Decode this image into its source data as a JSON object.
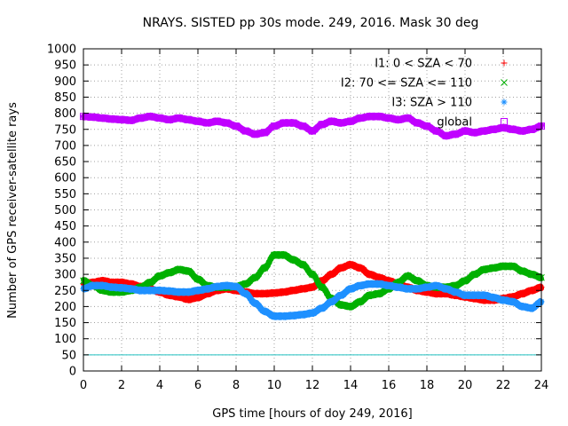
{
  "chart_data": {
    "type": "scatter",
    "title": "NRAYS. SISTED pp 30s mode. 249, 2016. Mask 30 deg",
    "xlabel": "GPS time [hours of doy 249, 2016]",
    "ylabel": "Number of GPS receiver-satellite rays",
    "xlim": [
      0,
      24
    ],
    "ylim": [
      0,
      1000
    ],
    "xticks": [
      0,
      2,
      4,
      6,
      8,
      10,
      12,
      14,
      16,
      18,
      20,
      22,
      24
    ],
    "yticks": [
      0,
      50,
      100,
      150,
      200,
      250,
      300,
      350,
      400,
      450,
      500,
      550,
      600,
      650,
      700,
      750,
      800,
      850,
      900,
      950,
      1000
    ],
    "grid": true,
    "legend_position": "top-right",
    "threshold_line": {
      "y": 50,
      "color": "#20c0c0"
    },
    "series": [
      {
        "name": "I1: 0 < SZA < 70",
        "color": "#ff0000",
        "marker": "+",
        "x": [
          0,
          0.5,
          1,
          1.5,
          2,
          2.5,
          3,
          3.5,
          4,
          4.5,
          5,
          5.5,
          6,
          6.5,
          7,
          7.5,
          8,
          8.5,
          9,
          9.5,
          10,
          10.5,
          11,
          11.5,
          12,
          12.5,
          13,
          13.5,
          14,
          14.5,
          15,
          15.5,
          16,
          16.5,
          17,
          17.5,
          18,
          18.5,
          19,
          19.5,
          20,
          20.5,
          21,
          21.5,
          22,
          22.5,
          23,
          23.5,
          24
        ],
        "y": [
          270,
          275,
          280,
          275,
          275,
          270,
          262,
          255,
          245,
          235,
          230,
          222,
          228,
          240,
          250,
          255,
          250,
          245,
          240,
          240,
          242,
          245,
          250,
          255,
          260,
          280,
          300,
          320,
          330,
          320,
          300,
          290,
          280,
          270,
          260,
          250,
          245,
          240,
          240,
          235,
          230,
          225,
          220,
          220,
          225,
          230,
          240,
          250,
          260
        ]
      },
      {
        "name": "I2: 70 <= SZA <= 110",
        "color": "#00b000",
        "marker": "x",
        "x": [
          0,
          0.5,
          1,
          1.5,
          2,
          2.5,
          3,
          3.5,
          4,
          4.5,
          5,
          5.5,
          6,
          6.5,
          7,
          7.5,
          8,
          8.5,
          9,
          9.5,
          10,
          10.5,
          11,
          11.5,
          12,
          12.5,
          13,
          13.5,
          14,
          14.5,
          15,
          15.5,
          16,
          16.5,
          17,
          17.5,
          18,
          18.5,
          19,
          19.5,
          20,
          20.5,
          21,
          21.5,
          22,
          22.5,
          23,
          23.5,
          24
        ],
        "y": [
          280,
          265,
          250,
          245,
          245,
          250,
          260,
          275,
          295,
          305,
          315,
          310,
          285,
          265,
          260,
          260,
          262,
          270,
          290,
          320,
          360,
          360,
          345,
          330,
          300,
          260,
          225,
          205,
          200,
          215,
          235,
          240,
          255,
          275,
          295,
          280,
          265,
          260,
          260,
          265,
          280,
          300,
          315,
          320,
          325,
          325,
          310,
          300,
          290
        ]
      },
      {
        "name": "I3: SZA > 110",
        "color": "#1e90ff",
        "marker": "*",
        "x": [
          0,
          0.5,
          1,
          1.5,
          2,
          2.5,
          3,
          3.5,
          4,
          4.5,
          5,
          5.5,
          6,
          6.5,
          7,
          7.5,
          8,
          8.5,
          9,
          9.5,
          10,
          10.5,
          11,
          11.5,
          12,
          12.5,
          13,
          13.5,
          14,
          14.5,
          15,
          15.5,
          16,
          16.5,
          17,
          17.5,
          18,
          18.5,
          19,
          19.5,
          20,
          20.5,
          21,
          21.5,
          22,
          22.5,
          23,
          23.5,
          24
        ],
        "y": [
          255,
          265,
          265,
          260,
          258,
          255,
          250,
          250,
          250,
          248,
          245,
          245,
          250,
          255,
          262,
          265,
          262,
          240,
          210,
          185,
          170,
          170,
          172,
          175,
          180,
          195,
          215,
          235,
          255,
          265,
          270,
          270,
          265,
          260,
          255,
          255,
          260,
          265,
          255,
          245,
          235,
          235,
          235,
          228,
          220,
          215,
          200,
          195,
          215
        ]
      },
      {
        "name": "global",
        "color": "#c000ff",
        "marker": "square",
        "x": [
          0,
          0.5,
          1,
          1.5,
          2,
          2.5,
          3,
          3.5,
          4,
          4.5,
          5,
          5.5,
          6,
          6.5,
          7,
          7.5,
          8,
          8.5,
          9,
          9.5,
          10,
          10.5,
          11,
          11.5,
          12,
          12.5,
          13,
          13.5,
          14,
          14.5,
          15,
          15.5,
          16,
          16.5,
          17,
          17.5,
          18,
          18.5,
          19,
          19.5,
          20,
          20.5,
          21,
          21.5,
          22,
          22.5,
          23,
          23.5,
          24
        ],
        "y": [
          790,
          788,
          785,
          782,
          780,
          778,
          785,
          790,
          785,
          780,
          785,
          780,
          775,
          770,
          775,
          770,
          760,
          745,
          735,
          740,
          760,
          770,
          770,
          760,
          745,
          765,
          775,
          770,
          775,
          785,
          790,
          790,
          785,
          780,
          785,
          770,
          760,
          745,
          730,
          735,
          745,
          740,
          745,
          750,
          755,
          750,
          745,
          750,
          760
        ]
      }
    ]
  }
}
